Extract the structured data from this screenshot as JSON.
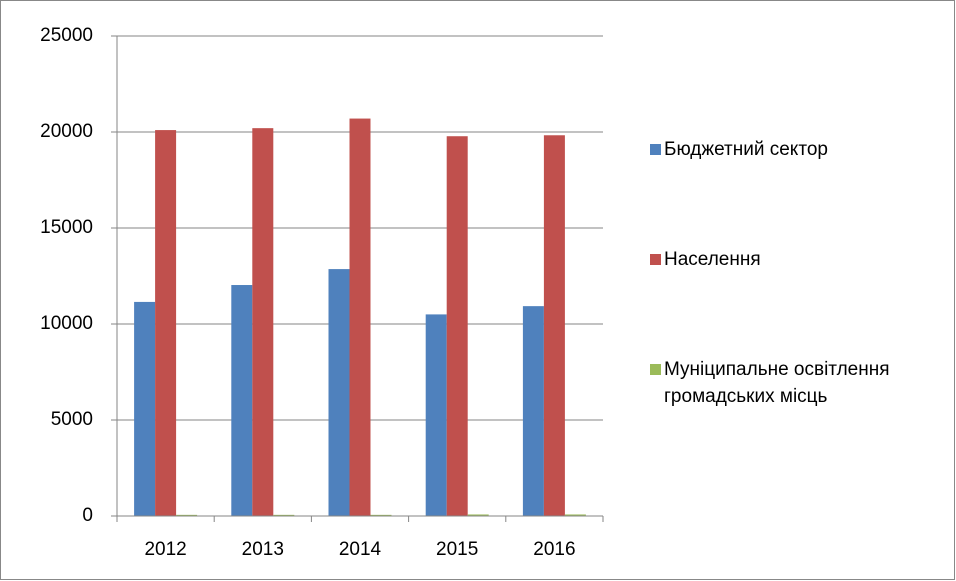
{
  "chart_data": {
    "type": "bar",
    "categories": [
      "2012",
      "2013",
      "2014",
      "2015",
      "2016"
    ],
    "series": [
      {
        "name": "Бюджетний сектор",
        "color": "#4f81bd",
        "values": [
          11150,
          12030,
          12860,
          10500,
          10930
        ]
      },
      {
        "name": "Населення",
        "color": "#c0504d",
        "values": [
          20100,
          20200,
          20700,
          19780,
          19830
        ]
      },
      {
        "name": "Муніципальне освітлення громадських місць",
        "color": "#9bbb59",
        "values": [
          60,
          60,
          60,
          80,
          80
        ]
      }
    ],
    "ylim": [
      0,
      25000
    ],
    "yticks": [
      0,
      5000,
      10000,
      15000,
      20000,
      25000
    ],
    "grid": true,
    "legend": "right"
  }
}
